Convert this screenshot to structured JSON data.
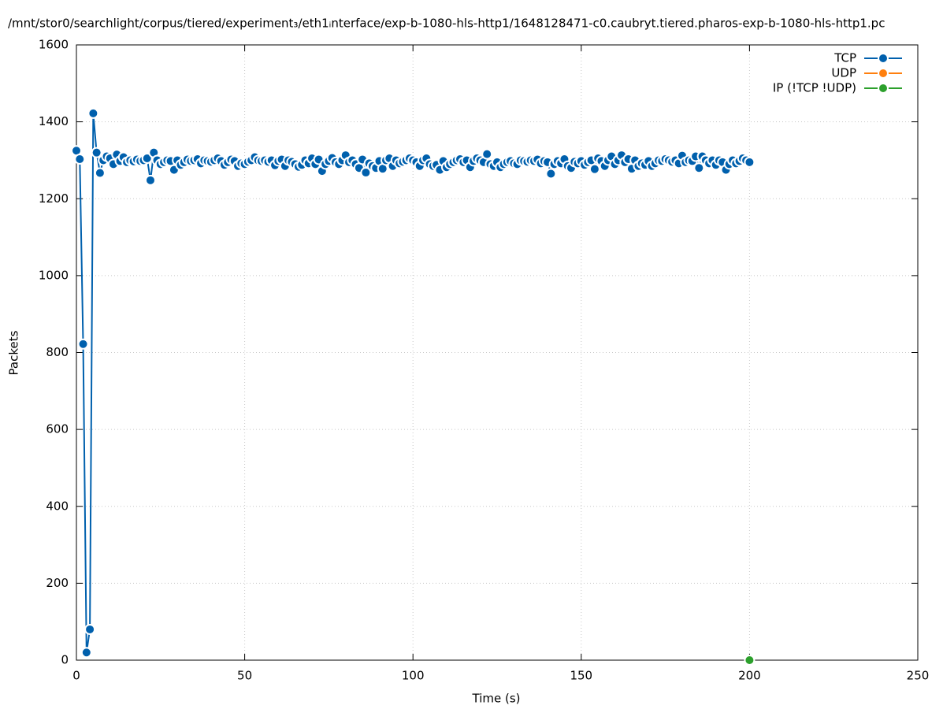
{
  "chart_data": {
    "type": "line",
    "title": "/mnt/stor0/searchlight/corpus/tiered/experiment₃/eth1ᵢnterface/exp-b-1080-hls-http1/1648128471-c0.caubryt.tiered.pharos-exp-b-1080-hls-http1.pc",
    "x_label": "Time (s)",
    "y_label": "Packets",
    "xlim": [
      0,
      250
    ],
    "xticks": [
      0,
      50,
      100,
      150,
      200,
      250
    ],
    "ylim": [
      0,
      1600
    ],
    "yticks": [
      0,
      200,
      400,
      600,
      800,
      1000,
      1200,
      1400,
      1600
    ],
    "grid": true,
    "legend": "top-right",
    "series": [
      {
        "name": "TCP",
        "color": "#0060ad",
        "x": [
          0,
          1,
          2,
          3,
          4,
          5,
          6,
          7,
          8,
          9,
          10,
          11,
          12,
          13,
          14,
          15,
          16,
          17,
          18,
          19,
          20,
          21,
          22,
          23,
          24,
          25,
          26,
          27,
          28,
          29,
          30,
          31,
          32,
          33,
          34,
          35,
          36,
          37,
          38,
          39,
          40,
          41,
          42,
          43,
          44,
          45,
          46,
          47,
          48,
          49,
          50,
          51,
          52,
          53,
          54,
          55,
          56,
          57,
          58,
          59,
          60,
          61,
          62,
          63,
          64,
          65,
          66,
          67,
          68,
          69,
          70,
          71,
          72,
          73,
          74,
          75,
          76,
          77,
          78,
          79,
          80,
          81,
          82,
          83,
          84,
          85,
          86,
          87,
          88,
          89,
          90,
          91,
          92,
          93,
          94,
          95,
          96,
          97,
          98,
          99,
          100,
          101,
          102,
          103,
          104,
          105,
          106,
          107,
          108,
          109,
          110,
          111,
          112,
          113,
          114,
          115,
          116,
          117,
          118,
          119,
          120,
          121,
          122,
          123,
          124,
          125,
          126,
          127,
          128,
          129,
          130,
          131,
          132,
          133,
          134,
          135,
          136,
          137,
          138,
          139,
          140,
          141,
          142,
          143,
          144,
          145,
          146,
          147,
          148,
          149,
          150,
          151,
          152,
          153,
          154,
          155,
          156,
          157,
          158,
          159,
          160,
          161,
          162,
          163,
          164,
          165,
          166,
          167,
          168,
          169,
          170,
          171,
          172,
          173,
          174,
          175,
          176,
          177,
          178,
          179,
          180,
          181,
          182,
          183,
          184,
          185,
          186,
          187,
          188,
          189,
          190,
          191,
          192,
          193,
          194,
          195,
          196,
          197,
          198,
          199,
          200
        ],
        "values": [
          1325,
          1303,
          822,
          20,
          80,
          1422,
          1320,
          1267,
          1300,
          1310,
          1305,
          1290,
          1315,
          1298,
          1308,
          1295,
          1300,
          1297,
          1302,
          1298,
          1300,
          1305,
          1248,
          1320,
          1300,
          1290,
          1295,
          1300,
          1298,
          1275,
          1300,
          1288,
          1295,
          1302,
          1298,
          1300,
          1303,
          1292,
          1300,
          1298,
          1296,
          1300,
          1305,
          1298,
          1288,
          1295,
          1302,
          1298,
          1285,
          1292,
          1290,
          1296,
          1300,
          1308,
          1300,
          1298,
          1300,
          1296,
          1300,
          1287,
          1298,
          1302,
          1285,
          1300,
          1296,
          1290,
          1283,
          1288,
          1300,
          1292,
          1305,
          1290,
          1302,
          1272,
          1290,
          1298,
          1306,
          1295,
          1290,
          1300,
          1313,
          1295,
          1300,
          1290,
          1280,
          1302,
          1268,
          1292,
          1285,
          1280,
          1298,
          1278,
          1300,
          1305,
          1285,
          1300,
          1292,
          1296,
          1300,
          1305,
          1300,
          1295,
          1285,
          1300,
          1305,
          1290,
          1285,
          1288,
          1275,
          1298,
          1282,
          1290,
          1295,
          1300,
          1303,
          1295,
          1300,
          1282,
          1298,
          1305,
          1300,
          1295,
          1316,
          1290,
          1285,
          1295,
          1282,
          1290,
          1295,
          1298,
          1292,
          1290,
          1300,
          1298,
          1296,
          1300,
          1298,
          1302,
          1292,
          1298,
          1295,
          1265,
          1290,
          1298,
          1292,
          1303,
          1285,
          1280,
          1296,
          1292,
          1298,
          1288,
          1295,
          1300,
          1277,
          1305,
          1298,
          1285,
          1300,
          1310,
          1290,
          1300,
          1313,
          1295,
          1303,
          1278,
          1300,
          1285,
          1292,
          1288,
          1298,
          1285,
          1292,
          1300,
          1298,
          1303,
          1300,
          1296,
          1300,
          1292,
          1312,
          1295,
          1300,
          1298,
          1310,
          1280,
          1310,
          1300,
          1292,
          1300,
          1288,
          1300,
          1295,
          1275,
          1290,
          1300,
          1292,
          1298,
          1305,
          1300,
          1295
        ]
      },
      {
        "name": "UDP",
        "color": "#ff7f0e",
        "x": [],
        "values": []
      },
      {
        "name": "IP (!TCP  !UDP)",
        "color": "#2ca02c",
        "x": [
          200
        ],
        "values": [
          0
        ]
      }
    ]
  }
}
